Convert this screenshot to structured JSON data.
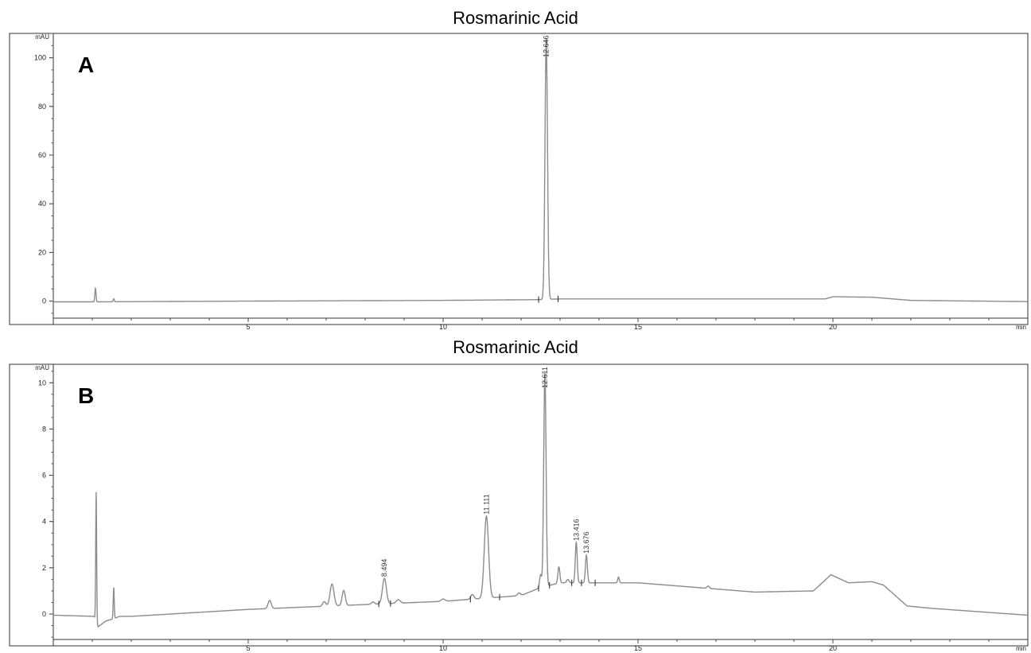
{
  "chart_data": [
    {
      "type": "line",
      "panel_label": "A",
      "title": "Rosmarinic Acid",
      "ylabel": "mAU",
      "xlabel": "min",
      "xlim": [
        0,
        25
      ],
      "ylim": [
        -7,
        110
      ],
      "x_ticks": [
        5,
        10,
        15,
        20
      ],
      "y_ticks": [
        0,
        20,
        40,
        60,
        80,
        100
      ],
      "grid": false,
      "baseline": [
        [
          0,
          -0.3
        ],
        [
          1,
          -0.3
        ],
        [
          5,
          0.0
        ],
        [
          10,
          0.3
        ],
        [
          12.4,
          0.6
        ],
        [
          13,
          0.9
        ],
        [
          19.8,
          0.9
        ],
        [
          20,
          1.8
        ],
        [
          21,
          1.6
        ],
        [
          22,
          0.3
        ],
        [
          25,
          -0.2
        ]
      ],
      "peaks": [
        {
          "rt": 1.08,
          "height": 5.5,
          "width": 0.015
        },
        {
          "rt": 1.55,
          "height": 1.2,
          "width": 0.015
        },
        {
          "rt": 12.646,
          "height": 107,
          "width": 0.032,
          "label": "12.646"
        }
      ],
      "markers": [
        12.45,
        12.95
      ]
    },
    {
      "type": "line",
      "panel_label": "B",
      "title": "Rosmarinic Acid",
      "ylabel": "mAU",
      "xlabel": "min",
      "xlim": [
        0,
        25
      ],
      "ylim": [
        -1.1,
        10.8
      ],
      "x_ticks": [
        5,
        10,
        15,
        20
      ],
      "y_ticks": [
        0,
        2,
        4,
        6,
        8,
        10
      ],
      "grid": false,
      "baseline": [
        [
          0,
          -0.05
        ],
        [
          1.05,
          -0.1
        ],
        [
          1.15,
          -0.55
        ],
        [
          1.35,
          -0.3
        ],
        [
          1.55,
          -0.2
        ],
        [
          1.7,
          -0.1
        ],
        [
          2,
          -0.1
        ],
        [
          5,
          0.2
        ],
        [
          10,
          0.55
        ],
        [
          12,
          0.8
        ],
        [
          12.5,
          1.15
        ],
        [
          13,
          1.35
        ],
        [
          15,
          1.35
        ],
        [
          16.5,
          1.15
        ],
        [
          18,
          0.95
        ],
        [
          19.5,
          1.0
        ],
        [
          19.95,
          1.7
        ],
        [
          20.4,
          1.35
        ],
        [
          21,
          1.4
        ],
        [
          21.3,
          1.25
        ],
        [
          21.9,
          0.35
        ],
        [
          22.5,
          0.25
        ],
        [
          25,
          -0.05
        ]
      ],
      "peaks": [
        {
          "rt": 1.1,
          "height": 5.6,
          "width": 0.012
        },
        {
          "rt": 1.55,
          "height": 1.35,
          "width": 0.013
        },
        {
          "rt": 5.55,
          "height": 0.35,
          "width": 0.04
        },
        {
          "rt": 6.95,
          "height": 0.2,
          "width": 0.04
        },
        {
          "rt": 7.15,
          "height": 0.95,
          "width": 0.05
        },
        {
          "rt": 7.45,
          "height": 0.65,
          "width": 0.04
        },
        {
          "rt": 8.2,
          "height": 0.1,
          "width": 0.04
        },
        {
          "rt": 8.494,
          "height": 1.1,
          "width": 0.05,
          "label": "8.494"
        },
        {
          "rt": 8.85,
          "height": 0.15,
          "width": 0.05
        },
        {
          "rt": 10.0,
          "height": 0.1,
          "width": 0.05
        },
        {
          "rt": 10.75,
          "height": 0.2,
          "width": 0.04
        },
        {
          "rt": 11.111,
          "height": 3.55,
          "width": 0.055,
          "label": "11.111"
        },
        {
          "rt": 11.95,
          "height": 0.12,
          "width": 0.04
        },
        {
          "rt": 12.5,
          "height": 0.55,
          "width": 0.025
        },
        {
          "rt": 12.611,
          "height": 9.25,
          "width": 0.03,
          "label": "12.611"
        },
        {
          "rt": 12.97,
          "height": 0.7,
          "width": 0.025
        },
        {
          "rt": 13.2,
          "height": 0.15,
          "width": 0.03
        },
        {
          "rt": 13.416,
          "height": 1.75,
          "width": 0.025,
          "label": "13.416"
        },
        {
          "rt": 13.676,
          "height": 1.2,
          "width": 0.025,
          "label": "13.676"
        },
        {
          "rt": 14.5,
          "height": 0.25,
          "width": 0.02
        },
        {
          "rt": 16.8,
          "height": 0.1,
          "width": 0.03
        }
      ],
      "markers": [
        8.35,
        8.65,
        10.7,
        11.45,
        12.45,
        12.73,
        13.3,
        13.55,
        13.9
      ]
    }
  ]
}
